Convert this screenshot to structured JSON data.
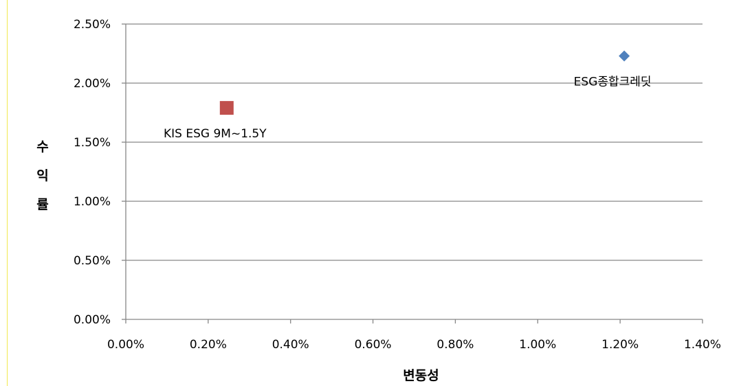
{
  "chart_data": {
    "type": "scatter",
    "title": "",
    "xlabel": "변동성",
    "ylabel": "수익률",
    "xlim": [
      0,
      1.4
    ],
    "ylim": [
      0,
      2.5
    ],
    "x_ticks": [
      "0.00%",
      "0.20%",
      "0.40%",
      "0.60%",
      "0.80%",
      "1.00%",
      "1.20%",
      "1.40%"
    ],
    "y_ticks": [
      "0.00%",
      "0.50%",
      "1.00%",
      "1.50%",
      "2.00%",
      "2.50%"
    ],
    "grid": "horizontal",
    "legend": "none",
    "series": [
      {
        "name": "ESG종합크레딧",
        "label": "ESG종합크레딧",
        "x": 1.21,
        "y": 2.23,
        "marker": "diamond",
        "color": "#4f81bd",
        "label_position": "below"
      },
      {
        "name": "KIS ESG 9M~1.5Y",
        "label": "KIS ESG 9M~1.5Y",
        "x": 0.245,
        "y": 1.79,
        "marker": "square",
        "color": "#c0504d",
        "label_position": "below"
      }
    ]
  },
  "colors": {
    "grid": "#868686",
    "accent_line": "#f2e94e"
  }
}
